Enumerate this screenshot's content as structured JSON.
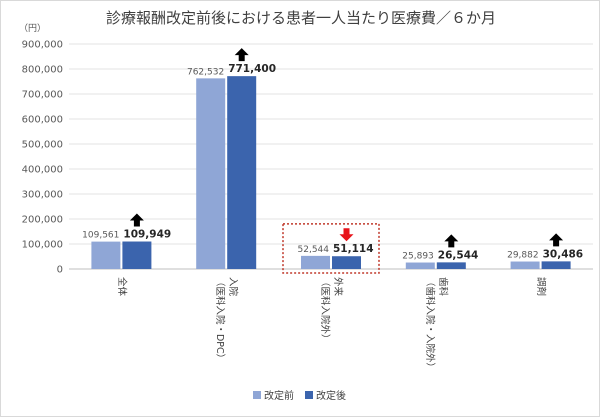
{
  "chart_data": {
    "type": "bar",
    "title": "診療報酬改定前後における患者一人当たり医療費／６か月",
    "y_unit": "（円）",
    "ylim": [
      0,
      900000
    ],
    "yticks": [
      "0",
      "100,000",
      "200,000",
      "300,000",
      "400,000",
      "500,000",
      "600,000",
      "700,000",
      "800,000",
      "900,000"
    ],
    "grid": true,
    "legend_position": "bottom",
    "categories": [
      {
        "lines": [
          "全体"
        ]
      },
      {
        "lines": [
          "入院",
          "（医科入院・DPC）"
        ]
      },
      {
        "lines": [
          "外来",
          "（医科入院外）"
        ]
      },
      {
        "lines": [
          "歯科",
          "（歯科入院・入院外）"
        ]
      },
      {
        "lines": [
          "調剤"
        ]
      }
    ],
    "series": [
      {
        "name": "改定前",
        "color": "#8fa6d6",
        "values": [
          109561,
          762532,
          52544,
          25893,
          29882
        ],
        "labels": [
          "109,561",
          "762,532",
          "52,544",
          "25,893",
          "29,882"
        ]
      },
      {
        "name": "改定後",
        "color": "#3b64ad",
        "values": [
          109949,
          771400,
          51114,
          26544,
          30486
        ],
        "labels": [
          "109,949",
          "771,400",
          "51,114",
          "26,544",
          "30,486"
        ]
      }
    ],
    "change_arrows": [
      {
        "direction": "up",
        "color": "#000000"
      },
      {
        "direction": "up",
        "color": "#000000"
      },
      {
        "direction": "down",
        "color": "#e8141b"
      },
      {
        "direction": "up",
        "color": "#000000"
      },
      {
        "direction": "up",
        "color": "#000000"
      }
    ],
    "highlight": {
      "category_index": 2,
      "style": "dotted-box",
      "color": "#c0392b"
    }
  }
}
